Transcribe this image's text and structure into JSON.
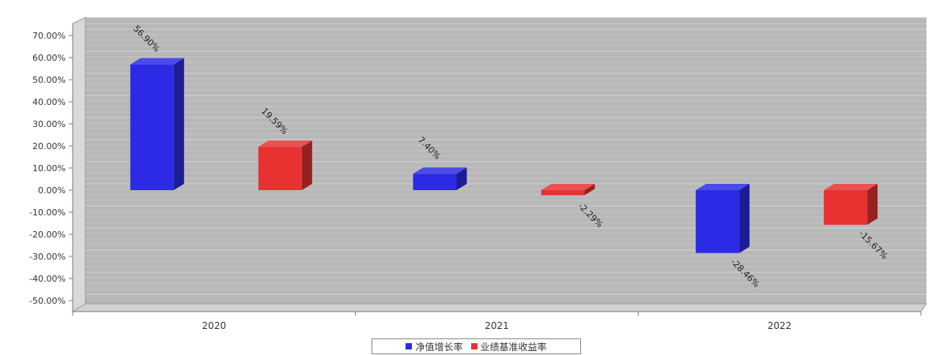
{
  "chart_data": {
    "type": "bar",
    "title": "",
    "xlabel": "",
    "ylabel": "",
    "categories": [
      "2020",
      "2021",
      "2022"
    ],
    "series": [
      {
        "name": "净值增长率",
        "color": "#2b2be6",
        "values": [
          56.9,
          7.4,
          -28.46
        ],
        "labels": [
          "56.90%",
          "7.40%",
          "-28.46%"
        ]
      },
      {
        "name": "业绩基准收益率",
        "color": "#e83232",
        "values": [
          19.59,
          -2.29,
          -15.67
        ],
        "labels": [
          "19.59%",
          "-2.29%",
          "-15.67%"
        ]
      }
    ],
    "ylim": [
      -50,
      70
    ],
    "ytick_values": [
      70,
      60,
      50,
      40,
      30,
      20,
      10,
      0,
      -10,
      -20,
      -30,
      -40,
      -50
    ],
    "ytick_labels": [
      "70.00%",
      "60.00%",
      "50.00%",
      "40.00%",
      "30.00%",
      "20.00%",
      "10.00%",
      "0.00%",
      "-10.00%",
      "-20.00%",
      "-30.00%",
      "-40.00%",
      "-50.00%"
    ],
    "grid": true,
    "style": "3d",
    "legend_position": "bottom-center"
  }
}
